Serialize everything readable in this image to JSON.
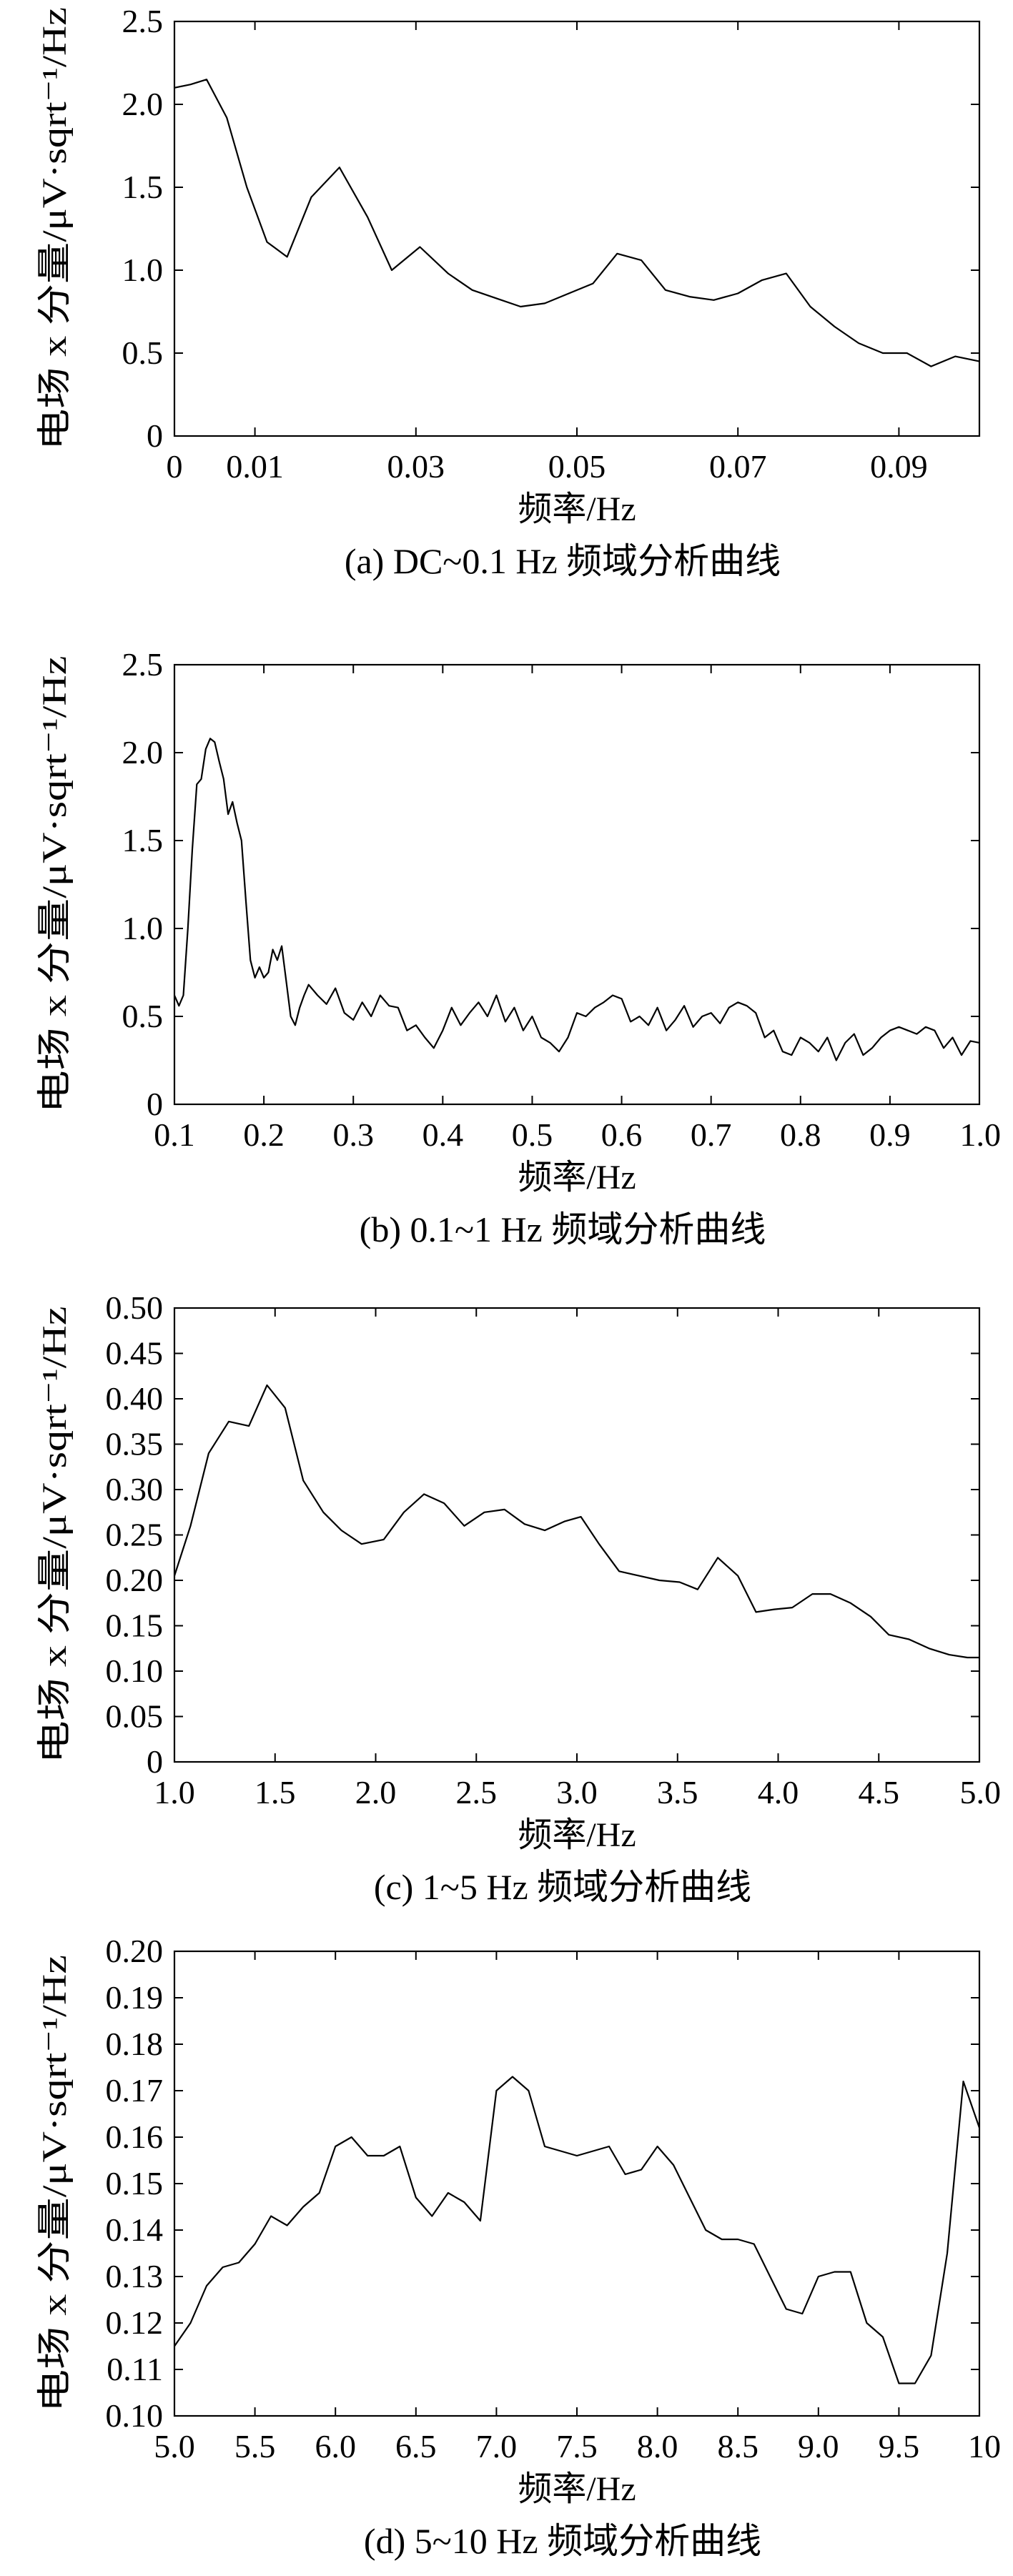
{
  "chart_data": [
    {
      "type": "line",
      "id": "a",
      "caption": "(a) DC~0.1 Hz 频域分析曲线",
      "xlabel": "频率/Hz",
      "ylabel": "电场 x 分量/μV·sqrt⁻¹/Hz",
      "xlim": [
        0,
        0.1
      ],
      "ylim": [
        0,
        2.5
      ],
      "xticks": [
        0,
        0.01,
        0.03,
        0.05,
        0.07,
        0.09
      ],
      "xtick_labels": [
        "0",
        "0.01",
        "0.03",
        "0.05",
        "0.07",
        "0.09"
      ],
      "yticks": [
        0,
        0.5,
        1.0,
        1.5,
        2.0,
        2.5
      ],
      "ytick_labels": [
        "0",
        "0.5",
        "1.0",
        "1.5",
        "2.0",
        "2.5"
      ],
      "grid": false,
      "series": [
        {
          "x": [
            0,
            0.002,
            0.004,
            0.0065,
            0.009,
            0.0115,
            0.014,
            0.017,
            0.0205,
            0.024,
            0.027,
            0.0305,
            0.034,
            0.037,
            0.04,
            0.043,
            0.046,
            0.049,
            0.052,
            0.055,
            0.058,
            0.061,
            0.064,
            0.067,
            0.07,
            0.073,
            0.076,
            0.079,
            0.082,
            0.085,
            0.088,
            0.091,
            0.094,
            0.097,
            0.1
          ],
          "y": [
            2.1,
            2.12,
            2.15,
            1.92,
            1.5,
            1.17,
            1.08,
            1.44,
            1.62,
            1.32,
            1.0,
            1.14,
            0.98,
            0.88,
            0.83,
            0.78,
            0.8,
            0.86,
            0.92,
            1.1,
            1.06,
            0.88,
            0.84,
            0.82,
            0.86,
            0.94,
            0.98,
            0.78,
            0.66,
            0.56,
            0.5,
            0.5,
            0.42,
            0.48,
            0.45
          ]
        }
      ]
    },
    {
      "type": "line",
      "id": "b",
      "caption": "(b) 0.1~1 Hz 频域分析曲线",
      "xlabel": "频率/Hz",
      "ylabel": "电场 x 分量/μV·sqrt⁻¹/Hz",
      "xlim": [
        0.1,
        1.0
      ],
      "ylim": [
        0,
        2.5
      ],
      "xticks": [
        0.1,
        0.2,
        0.3,
        0.4,
        0.5,
        0.6,
        0.7,
        0.8,
        0.9,
        1.0
      ],
      "xtick_labels": [
        "0.1",
        "0.2",
        "0.3",
        "0.4",
        "0.5",
        "0.6",
        "0.7",
        "0.8",
        "0.9",
        "1.0"
      ],
      "yticks": [
        0,
        0.5,
        1.0,
        1.5,
        2.0,
        2.5
      ],
      "ytick_labels": [
        "0",
        "0.5",
        "1.0",
        "1.5",
        "2.0",
        "2.5"
      ],
      "grid": false,
      "series": [
        {
          "x": [
            0.1,
            0.105,
            0.11,
            0.115,
            0.12,
            0.125,
            0.13,
            0.135,
            0.14,
            0.145,
            0.15,
            0.155,
            0.16,
            0.165,
            0.17,
            0.175,
            0.18,
            0.185,
            0.19,
            0.195,
            0.2,
            0.205,
            0.21,
            0.215,
            0.22,
            0.225,
            0.23,
            0.235,
            0.24,
            0.245,
            0.25,
            0.26,
            0.27,
            0.28,
            0.29,
            0.3,
            0.31,
            0.32,
            0.33,
            0.34,
            0.35,
            0.36,
            0.37,
            0.38,
            0.39,
            0.4,
            0.41,
            0.42,
            0.43,
            0.44,
            0.45,
            0.46,
            0.47,
            0.48,
            0.49,
            0.5,
            0.51,
            0.52,
            0.53,
            0.54,
            0.55,
            0.56,
            0.57,
            0.58,
            0.59,
            0.6,
            0.61,
            0.62,
            0.63,
            0.64,
            0.65,
            0.66,
            0.67,
            0.68,
            0.69,
            0.7,
            0.71,
            0.72,
            0.73,
            0.74,
            0.75,
            0.76,
            0.77,
            0.78,
            0.79,
            0.8,
            0.81,
            0.82,
            0.83,
            0.84,
            0.85,
            0.86,
            0.87,
            0.88,
            0.89,
            0.9,
            0.91,
            0.92,
            0.93,
            0.94,
            0.95,
            0.96,
            0.97,
            0.98,
            0.99,
            1.0
          ],
          "y": [
            0.62,
            0.56,
            0.62,
            1.0,
            1.45,
            1.82,
            1.85,
            2.02,
            2.08,
            2.06,
            1.95,
            1.85,
            1.65,
            1.72,
            1.6,
            1.5,
            1.15,
            0.82,
            0.72,
            0.78,
            0.72,
            0.75,
            0.88,
            0.82,
            0.9,
            0.7,
            0.5,
            0.45,
            0.55,
            0.62,
            0.68,
            0.62,
            0.57,
            0.66,
            0.52,
            0.48,
            0.58,
            0.5,
            0.62,
            0.56,
            0.55,
            0.42,
            0.45,
            0.38,
            0.32,
            0.42,
            0.55,
            0.45,
            0.52,
            0.58,
            0.5,
            0.62,
            0.47,
            0.55,
            0.42,
            0.5,
            0.38,
            0.35,
            0.3,
            0.38,
            0.52,
            0.5,
            0.55,
            0.58,
            0.62,
            0.6,
            0.47,
            0.5,
            0.45,
            0.55,
            0.42,
            0.48,
            0.56,
            0.44,
            0.5,
            0.52,
            0.46,
            0.55,
            0.58,
            0.56,
            0.52,
            0.38,
            0.42,
            0.3,
            0.28,
            0.38,
            0.35,
            0.3,
            0.38,
            0.25,
            0.35,
            0.4,
            0.28,
            0.32,
            0.38,
            0.42,
            0.44,
            0.42,
            0.4,
            0.44,
            0.42,
            0.32,
            0.38,
            0.28,
            0.36,
            0.35
          ]
        }
      ]
    },
    {
      "type": "line",
      "id": "c",
      "caption": "(c) 1~5 Hz 频域分析曲线",
      "xlabel": "频率/Hz",
      "ylabel": "电场 x 分量/μV·sqrt⁻¹/Hz",
      "xlim": [
        1.0,
        5.0
      ],
      "ylim": [
        0,
        0.5
      ],
      "xticks": [
        1.0,
        1.5,
        2.0,
        2.5,
        3.0,
        3.5,
        4.0,
        4.5,
        5.0
      ],
      "xtick_labels": [
        "1.0",
        "1.5",
        "2.0",
        "2.5",
        "3.0",
        "3.5",
        "4.0",
        "4.5",
        "5.0"
      ],
      "yticks": [
        0,
        0.05,
        0.1,
        0.15,
        0.2,
        0.25,
        0.3,
        0.35,
        0.4,
        0.45,
        0.5
      ],
      "ytick_labels": [
        "0",
        "0.05",
        "0.10",
        "0.15",
        "0.20",
        "0.25",
        "0.30",
        "0.35",
        "0.40",
        "0.45",
        "0.50"
      ],
      "grid": false,
      "series": [
        {
          "x": [
            1.0,
            1.08,
            1.17,
            1.27,
            1.37,
            1.46,
            1.55,
            1.64,
            1.74,
            1.83,
            1.93,
            2.04,
            2.14,
            2.24,
            2.34,
            2.44,
            2.54,
            2.64,
            2.74,
            2.84,
            2.94,
            3.02,
            3.11,
            3.21,
            3.31,
            3.41,
            3.51,
            3.6,
            3.7,
            3.8,
            3.89,
            3.98,
            4.07,
            4.17,
            4.26,
            4.36,
            4.46,
            4.55,
            4.65,
            4.75,
            4.85,
            4.94,
            5.0
          ],
          "y": [
            0.205,
            0.26,
            0.34,
            0.375,
            0.37,
            0.415,
            0.39,
            0.31,
            0.275,
            0.255,
            0.24,
            0.245,
            0.275,
            0.295,
            0.285,
            0.26,
            0.275,
            0.278,
            0.262,
            0.255,
            0.265,
            0.27,
            0.24,
            0.21,
            0.205,
            0.2,
            0.198,
            0.19,
            0.225,
            0.205,
            0.165,
            0.168,
            0.17,
            0.185,
            0.185,
            0.175,
            0.16,
            0.14,
            0.135,
            0.125,
            0.118,
            0.115,
            0.115
          ]
        }
      ]
    },
    {
      "type": "line",
      "id": "d",
      "caption": "(d) 5~10 Hz 频域分析曲线",
      "xlabel": "频率/Hz",
      "ylabel": "电场 x 分量/μV·sqrt⁻¹/Hz",
      "xlim": [
        5.0,
        10.0
      ],
      "ylim": [
        0.1,
        0.2
      ],
      "xticks": [
        5.0,
        5.5,
        6.0,
        6.5,
        7.0,
        7.5,
        8.0,
        8.5,
        9.0,
        9.5,
        10.0
      ],
      "xtick_labels": [
        "5.0",
        "5.5",
        "6.0",
        "6.5",
        "7.0",
        "7.5",
        "8.0",
        "8.5",
        "9.0",
        "9.5",
        "10"
      ],
      "yticks": [
        0.1,
        0.11,
        0.12,
        0.13,
        0.14,
        0.15,
        0.16,
        0.17,
        0.18,
        0.19,
        0.2
      ],
      "ytick_labels": [
        "0.10",
        "0.11",
        "0.12",
        "0.13",
        "0.14",
        "0.15",
        "0.16",
        "0.17",
        "0.18",
        "0.19",
        "0.20"
      ],
      "grid": false,
      "series": [
        {
          "x": [
            5.0,
            5.1,
            5.2,
            5.3,
            5.4,
            5.5,
            5.6,
            5.7,
            5.8,
            5.9,
            6.0,
            6.1,
            6.2,
            6.3,
            6.4,
            6.5,
            6.6,
            6.7,
            6.8,
            6.9,
            7.0,
            7.1,
            7.2,
            7.3,
            7.4,
            7.5,
            7.6,
            7.7,
            7.8,
            7.9,
            8.0,
            8.1,
            8.2,
            8.3,
            8.4,
            8.5,
            8.6,
            8.7,
            8.8,
            8.9,
            9.0,
            9.1,
            9.2,
            9.3,
            9.4,
            9.5,
            9.6,
            9.7,
            9.8,
            9.9,
            10.0
          ],
          "y": [
            0.115,
            0.12,
            0.128,
            0.132,
            0.133,
            0.137,
            0.143,
            0.141,
            0.145,
            0.148,
            0.158,
            0.16,
            0.156,
            0.156,
            0.158,
            0.147,
            0.143,
            0.148,
            0.146,
            0.142,
            0.17,
            0.173,
            0.17,
            0.158,
            0.157,
            0.156,
            0.157,
            0.158,
            0.152,
            0.153,
            0.158,
            0.154,
            0.147,
            0.14,
            0.138,
            0.138,
            0.137,
            0.13,
            0.123,
            0.122,
            0.13,
            0.131,
            0.131,
            0.12,
            0.117,
            0.107,
            0.107,
            0.113,
            0.135,
            0.172,
            0.162
          ]
        }
      ]
    }
  ]
}
